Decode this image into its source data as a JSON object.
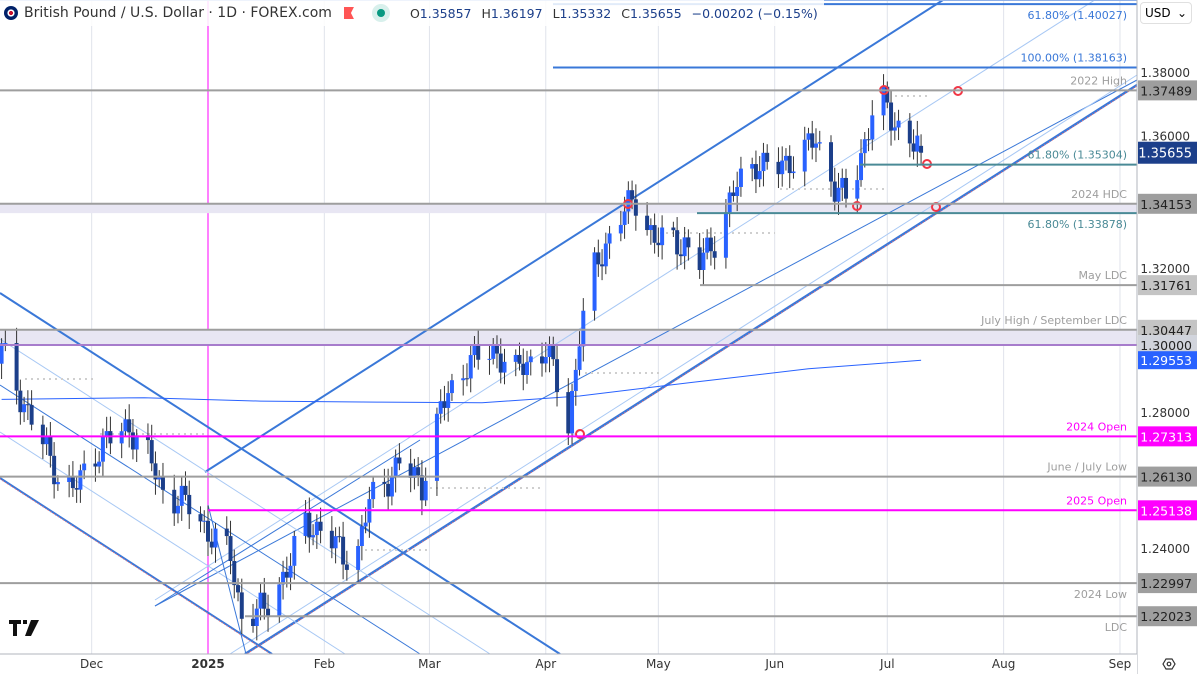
{
  "header": {
    "symbol_title": "British Pound / U.S. Dollar · 1D · FOREX.com",
    "open_label": "O",
    "open": "1.35857",
    "high_label": "H",
    "high": "1.36197",
    "low_label": "L",
    "low": "1.35332",
    "close_label": "C",
    "close": "1.35655",
    "change": "−0.00202 (−0.15%)",
    "currency": "USD"
  },
  "logo_text": "TV",
  "colors": {
    "up": "#2962ff",
    "down": "#1c3f8a",
    "magenta": "#ff00ff",
    "gray": "#9e9e9e",
    "teal": "#4a8a96",
    "blue": "#3a78d8",
    "zone": "#e8e6f3",
    "ma": "#2962ff"
  },
  "chart_data": {
    "type": "candlestick",
    "symbol": "GBP/USD",
    "interval": "1D",
    "ylim": [
      1.214,
      1.402
    ],
    "y_ticks": [
      "1.38000",
      "1.36000",
      "1.32000",
      "1.28000",
      "1.24000"
    ],
    "x_ticks": [
      {
        "label": "Dec",
        "date": "2024-12-01"
      },
      {
        "label": "2025",
        "date": "2025-01-01"
      },
      {
        "label": "Feb",
        "date": "2025-02-01"
      },
      {
        "label": "Mar",
        "date": "2025-03-01"
      },
      {
        "label": "Apr",
        "date": "2025-04-01"
      },
      {
        "label": "May",
        "date": "2025-05-01"
      },
      {
        "label": "Jun",
        "date": "2025-06-01"
      },
      {
        "label": "Jul",
        "date": "2025-07-01"
      },
      {
        "label": "Aug",
        "date": "2025-08-01"
      },
      {
        "label": "Sep",
        "date": "2025-09-01"
      }
    ],
    "close_path": [
      [
        "2024-11-07",
        1.2985
      ],
      [
        "2024-11-14",
        1.28
      ],
      [
        "2024-11-22",
        1.262
      ],
      [
        "2024-11-26",
        1.257
      ],
      [
        "2024-12-03",
        1.27
      ],
      [
        "2024-12-11",
        1.276
      ],
      [
        "2024-12-15",
        1.27
      ],
      [
        "2024-12-20",
        1.257
      ],
      [
        "2024-12-28",
        1.252
      ],
      [
        "2025-01-01",
        1.245
      ],
      [
        "2025-01-07",
        1.238
      ],
      [
        "2025-01-10",
        1.22
      ],
      [
        "2025-01-16",
        1.222
      ],
      [
        "2025-01-23",
        1.236
      ],
      [
        "2025-01-27",
        1.248
      ],
      [
        "2025-02-01",
        1.245
      ],
      [
        "2025-02-06",
        1.238
      ],
      [
        "2025-02-10",
        1.24
      ],
      [
        "2025-02-13",
        1.254
      ],
      [
        "2025-02-21",
        1.265
      ],
      [
        "2025-02-27",
        1.259
      ],
      [
        "2025-03-04",
        1.281
      ],
      [
        "2025-03-11",
        1.295
      ],
      [
        "2025-03-19",
        1.298
      ],
      [
        "2025-03-24",
        1.292
      ],
      [
        "2025-04-01",
        1.299
      ],
      [
        "2025-04-05",
        1.285
      ],
      [
        "2025-04-07",
        1.276
      ],
      [
        "2025-04-10",
        1.303
      ],
      [
        "2025-04-14",
        1.322
      ],
      [
        "2025-04-20",
        1.337
      ],
      [
        "2025-04-25",
        1.3425
      ],
      [
        "2025-04-30",
        1.331
      ],
      [
        "2025-05-08",
        1.33
      ],
      [
        "2025-05-11",
        1.322
      ],
      [
        "2025-05-16",
        1.331
      ],
      [
        "2025-05-22",
        1.347
      ],
      [
        "2025-05-27",
        1.354
      ],
      [
        "2025-06-01",
        1.351
      ],
      [
        "2025-06-07",
        1.356
      ],
      [
        "2025-06-12",
        1.36
      ],
      [
        "2025-06-17",
        1.347
      ],
      [
        "2025-06-20",
        1.3425
      ],
      [
        "2025-06-23",
        1.351
      ],
      [
        "2025-06-27",
        1.369
      ],
      [
        "2025-06-29",
        1.3735
      ],
      [
        "2025-07-02",
        1.366
      ],
      [
        "2025-07-06",
        1.363
      ],
      [
        "2025-07-10",
        1.35655
      ]
    ],
    "last_bar": {
      "open": 1.35857,
      "high": 1.36197,
      "low": 1.35332,
      "close": 1.35655
    },
    "moving_average": {
      "last": 1.29553,
      "path": [
        [
          "2024-11-07",
          1.284
        ],
        [
          "2024-12-15",
          1.2845
        ],
        [
          "2025-01-15",
          1.2835
        ],
        [
          "2025-02-15",
          1.2832
        ],
        [
          "2025-03-15",
          1.283
        ],
        [
          "2025-04-10",
          1.285
        ],
        [
          "2025-05-10",
          1.289
        ],
        [
          "2025-06-10",
          1.293
        ],
        [
          "2025-07-10",
          1.2955
        ]
      ]
    },
    "levels": [
      {
        "price": 1.40027,
        "label": "61.80% (1.40027)",
        "style": "fib-blue",
        "badge": ""
      },
      {
        "price": 1.38163,
        "label": "100.00% (1.38163)",
        "style": "fib-blue",
        "badge": ""
      },
      {
        "price": 1.37489,
        "label": "2022 High",
        "style": "gray",
        "badge": "1.37489"
      },
      {
        "price": 1.35304,
        "label": "61.80% (1.35304)",
        "style": "teal",
        "badge": ""
      },
      {
        "price": 1.34153,
        "label": "2024 HDC",
        "style": "gray",
        "badge": "1.34153"
      },
      {
        "price": 1.33878,
        "label": "61.80% (1.33878)",
        "style": "teal",
        "badge": ""
      },
      {
        "price": 1.31761,
        "label": "May LDC",
        "style": "gray",
        "badge": "1.31761"
      },
      {
        "price": 1.30447,
        "label": "July High / September LDC",
        "style": "gray",
        "badge": "1.30447"
      },
      {
        "price": 1.3,
        "label": "",
        "style": "purple",
        "badge": "1.30000"
      },
      {
        "price": 1.27313,
        "label": "2024 Open",
        "style": "magenta",
        "badge": "1.27313"
      },
      {
        "price": 1.2613,
        "label": "June / July Low",
        "style": "gray",
        "badge": "1.26130"
      },
      {
        "price": 1.25138,
        "label": "2025 Open",
        "style": "magenta",
        "badge": "1.25138"
      },
      {
        "price": 1.22997,
        "label": "2024 Low",
        "style": "gray",
        "badge": "1.22997"
      },
      {
        "price": 1.22023,
        "label": "LDC",
        "style": "gray",
        "badge": "1.22023"
      }
    ],
    "current_price_badge": "1.35655",
    "ma_badge": "1.29553"
  }
}
